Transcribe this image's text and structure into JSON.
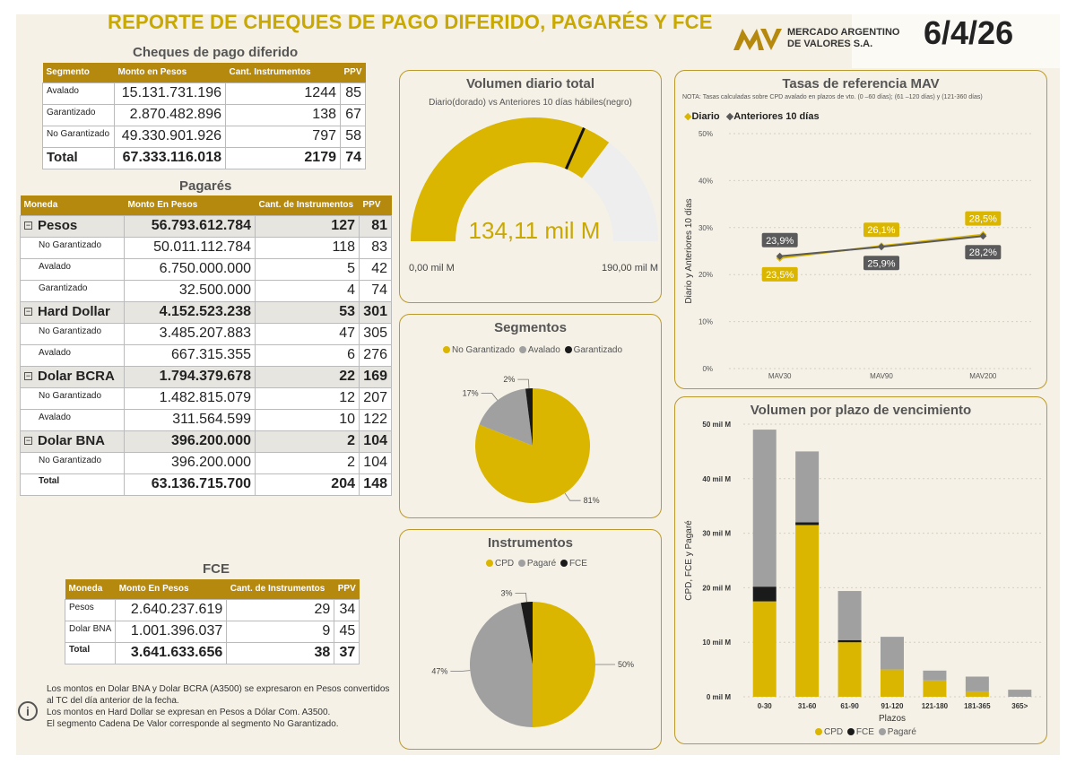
{
  "header": {
    "title": "REPORTE DE CHEQUES DE PAGO DIFERIDO, PAGARÉS Y FCE",
    "logo_line1": "MERCADO ARGENTINO",
    "logo_line2": "DE VALORES S.A.",
    "date": "6/4/26"
  },
  "cheques": {
    "title": "Cheques de pago diferido",
    "headers": [
      "Segmento",
      "Monto en Pesos",
      "Cant. Instrumentos",
      "PPV"
    ],
    "rows": [
      {
        "label": "Avalado",
        "monto": "15.131.731.196",
        "cant": "1244",
        "ppv": "85"
      },
      {
        "label": "Garantizado",
        "monto": "2.870.482.896",
        "cant": "138",
        "ppv": "67"
      },
      {
        "label": "No Garantizado",
        "monto": "49.330.901.926",
        "cant": "797",
        "ppv": "58"
      }
    ],
    "total": {
      "label": "Total",
      "monto": "67.333.116.018",
      "cant": "2179",
      "ppv": "74"
    }
  },
  "pagares": {
    "title": "Pagarés",
    "headers": [
      "Moneda",
      "Monto En Pesos",
      "Cant. de Instrumentos",
      "PPV"
    ],
    "groups": [
      {
        "label": "Pesos",
        "monto": "56.793.612.784",
        "cant": "127",
        "ppv": "81",
        "rows": [
          {
            "label": "No Garantizado",
            "monto": "50.011.112.784",
            "cant": "118",
            "ppv": "83"
          },
          {
            "label": "Avalado",
            "monto": "6.750.000.000",
            "cant": "5",
            "ppv": "42"
          },
          {
            "label": "Garantizado",
            "monto": "32.500.000",
            "cant": "4",
            "ppv": "74"
          }
        ]
      },
      {
        "label": "Hard Dollar",
        "monto": "4.152.523.238",
        "cant": "53",
        "ppv": "301",
        "rows": [
          {
            "label": "No Garantizado",
            "monto": "3.485.207.883",
            "cant": "47",
            "ppv": "305"
          },
          {
            "label": "Avalado",
            "monto": "667.315.355",
            "cant": "6",
            "ppv": "276"
          }
        ]
      },
      {
        "label": "Dolar BCRA",
        "monto": "1.794.379.678",
        "cant": "22",
        "ppv": "169",
        "rows": [
          {
            "label": "No Garantizado",
            "monto": "1.482.815.079",
            "cant": "12",
            "ppv": "207"
          },
          {
            "label": "Avalado",
            "monto": "311.564.599",
            "cant": "10",
            "ppv": "122"
          }
        ]
      },
      {
        "label": "Dolar BNA",
        "monto": "396.200.000",
        "cant": "2",
        "ppv": "104",
        "rows": [
          {
            "label": "No Garantizado",
            "monto": "396.200.000",
            "cant": "2",
            "ppv": "104"
          }
        ]
      }
    ],
    "total": {
      "label": "Total",
      "monto": "63.136.715.700",
      "cant": "204",
      "ppv": "148"
    }
  },
  "fce": {
    "title": "FCE",
    "headers": [
      "Moneda",
      "Monto En Pesos",
      "Cant. de Instrumentos",
      "PPV"
    ],
    "rows": [
      {
        "label": "Pesos",
        "monto": "2.640.237.619",
        "cant": "29",
        "ppv": "34"
      },
      {
        "label": "Dolar BNA",
        "monto": "1.001.396.037",
        "cant": "9",
        "ppv": "45"
      }
    ],
    "total": {
      "label": "Total",
      "monto": "3.641.633.656",
      "cant": "38",
      "ppv": "37"
    }
  },
  "notes": {
    "line1": "Los montos en Dolar BNA y Dolar BCRA (A3500) se expresaron en Pesos convertidos al TC del día anterior de la fecha.",
    "line2": "Los montos en Hard Dollar se expresan en Pesos a Dólar Com. A3500.",
    "line3": "El segmento Cadena De Valor corresponde al segmento No Garantizado."
  },
  "colors": {
    "gold": "#dab600",
    "gray": "#a0a0a0",
    "black": "#1a1a1a",
    "dark_gray": "#5a5a5a",
    "header_bg": "#b5880e"
  },
  "chart_data": [
    {
      "type": "gauge",
      "title": "Volumen diario total",
      "subtitle": "Diario(dorado) vs Anteriores 10 días hábiles(negro)",
      "value": 134.11,
      "value_label": "134,11 mil M",
      "target": 120,
      "min": 0,
      "max": 190,
      "min_label": "0,00 mil M",
      "max_label": "190,00 mil M"
    },
    {
      "type": "line",
      "title": "Tasas de referencia MAV",
      "note": "NOTA: Tasas calculadas sobre CPD avalado en plazos de vto. (0 –60 días); (61 –120 días) y (121-360 días)",
      "categories": [
        "MAV30",
        "MAV90",
        "MAV200"
      ],
      "ylabel": "Diario y Anteriores 10 días",
      "ylim": [
        0,
        50
      ],
      "yticks": [
        "0%",
        "10%",
        "20%",
        "30%",
        "40%",
        "50%"
      ],
      "series": [
        {
          "name": "Diario",
          "values": [
            23.5,
            26.1,
            28.5
          ],
          "labels": [
            "23,5%",
            "26,1%",
            "28,5%"
          ]
        },
        {
          "name": "Anteriores 10 días",
          "values": [
            23.9,
            25.9,
            28.2
          ],
          "labels": [
            "23,9%",
            "25,9%",
            "28,2%"
          ]
        }
      ]
    },
    {
      "type": "pie",
      "title": "Segmentos",
      "labels": [
        "No Garantizado",
        "Avalado",
        "Garantizado"
      ],
      "values": [
        81,
        17,
        2
      ],
      "value_labels": [
        "81%",
        "17%",
        "2%"
      ]
    },
    {
      "type": "pie",
      "title": "Instrumentos",
      "labels": [
        "CPD",
        "Pagaré",
        "FCE"
      ],
      "values": [
        50,
        47,
        3
      ],
      "value_labels": [
        "50%",
        "47%",
        "3%"
      ]
    },
    {
      "type": "bar",
      "stacked": true,
      "title": "Volumen por plazo de vencimiento",
      "xlabel": "Plazos",
      "ylabel": "CPD, FCE y Pagaré",
      "categories": [
        "0-30",
        "31-60",
        "61-90",
        "91-120",
        "121-180",
        "181-365",
        "365>"
      ],
      "ylim": [
        0,
        50
      ],
      "yticks": [
        "0 mil M",
        "10 mil M",
        "20 mil M",
        "30 mil M",
        "40 mil M",
        "50 mil M"
      ],
      "series": [
        {
          "name": "CPD",
          "values": [
            17.5,
            31.5,
            10.0,
            5.0,
            3.0,
            1.0,
            0.0
          ]
        },
        {
          "name": "FCE",
          "values": [
            2.7,
            0.5,
            0.4,
            0.0,
            0.0,
            0.0,
            0.0
          ]
        },
        {
          "name": "Pagaré",
          "values": [
            28.8,
            13.0,
            9.0,
            6.0,
            1.8,
            2.7,
            1.3
          ]
        }
      ]
    }
  ]
}
